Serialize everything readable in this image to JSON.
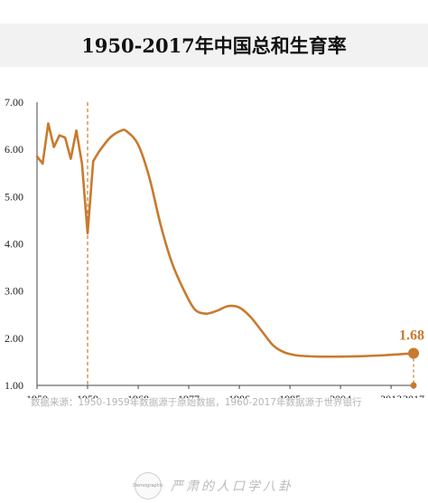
{
  "chart_data": {
    "type": "line",
    "title": "1950-2017年中国总和生育率",
    "xlabel": "",
    "ylabel": "",
    "xlim": [
      1950,
      2017
    ],
    "ylim": [
      1.0,
      7.0
    ],
    "x_ticks": [
      "1950",
      "1959",
      "1968",
      "1977",
      "1986",
      "1995",
      "2004",
      "2013",
      "2017"
    ],
    "y_ticks": [
      "7.00",
      "6.00",
      "5.00",
      "4.00",
      "3.00",
      "2.00",
      "1.00"
    ],
    "grid": false,
    "series": [
      {
        "color": "#c87a2e",
        "x": [
          1950,
          1951,
          1952,
          1953,
          1954,
          1955,
          1956,
          1957,
          1958,
          1959,
          1960,
          1961,
          1963,
          1965,
          1966,
          1968,
          1970,
          1972,
          1974,
          1976,
          1978,
          1980,
          1982,
          1984,
          1986,
          1988,
          1990,
          1992,
          1994,
          1996,
          1998,
          2000,
          2004,
          2008,
          2012,
          2017
        ],
        "y": [
          5.85,
          5.7,
          6.55,
          6.05,
          6.3,
          6.25,
          5.8,
          6.4,
          5.7,
          4.22,
          5.75,
          5.95,
          6.25,
          6.4,
          6.38,
          6.1,
          5.4,
          4.4,
          3.6,
          3.05,
          2.62,
          2.52,
          2.58,
          2.68,
          2.65,
          2.45,
          2.15,
          1.85,
          1.7,
          1.64,
          1.62,
          1.61,
          1.61,
          1.62,
          1.64,
          1.68
        ]
      }
    ],
    "reference_line": {
      "x": 1959,
      "style": "dashed"
    },
    "annotations": [
      {
        "x": 2017,
        "y": 1.68,
        "label": "1.68"
      }
    ]
  },
  "source_text": "数据来源：1950-1959年数据源于原始数据，1960-2017年数据源于世界银行",
  "brand_text": "严肃的人口学八卦",
  "logo_text": "Demographic",
  "colors": {
    "line": "#c87a2e",
    "axis": "#444444",
    "title_bg": "#f2f2f2"
  }
}
